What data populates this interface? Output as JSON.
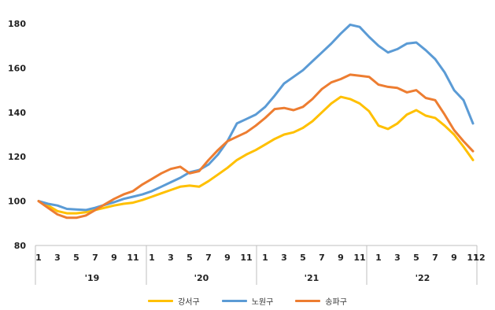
{
  "chart_data": {
    "type": "line",
    "title": "",
    "xlabel": "",
    "ylabel": "",
    "ylim": [
      80,
      180
    ],
    "yticks": [
      80,
      100,
      120,
      140,
      160,
      180
    ],
    "x_month_labels": [
      "1",
      "3",
      "5",
      "7",
      "9",
      "11",
      "1",
      "3",
      "5",
      "7",
      "9",
      "11",
      "1",
      "3",
      "5",
      "7",
      "9",
      "11",
      "1",
      "3",
      "5",
      "7",
      "9",
      "11",
      "12"
    ],
    "year_labels": [
      "'19",
      "'20",
      "'21",
      "'22"
    ],
    "grid": false,
    "legend_position": "bottom",
    "series": [
      {
        "name": "강서구",
        "color": "#FFC000",
        "values": [
          100,
          98,
          95.5,
          94.5,
          94.5,
          95,
          96,
          97,
          98,
          98.8,
          99.3,
          100.5,
          102,
          103.5,
          105,
          106.5,
          107,
          106.5,
          109,
          112,
          115,
          118.5,
          121,
          123,
          125.5,
          128,
          130,
          131,
          133,
          136,
          140,
          144,
          147,
          146,
          144,
          140.5,
          134,
          132.5,
          135,
          139,
          141,
          138.5,
          137.5,
          134,
          130,
          124.5,
          118.5
        ]
      },
      {
        "name": "노원구",
        "color": "#5B9BD5",
        "values": [
          100,
          98.8,
          98,
          96.5,
          96.2,
          96,
          97,
          98.3,
          99.5,
          101,
          102,
          103,
          104.5,
          106.5,
          108.5,
          110.5,
          113,
          114,
          116.5,
          121,
          127,
          135,
          137,
          139,
          142.5,
          147.5,
          153,
          156,
          159,
          163,
          167,
          171,
          175.5,
          179.5,
          178.5,
          174,
          170,
          167,
          168.5,
          171,
          171.5,
          168,
          164,
          158,
          150,
          145.5,
          135
        ]
      },
      {
        "name": "송파구",
        "color": "#ED7D31",
        "values": [
          100,
          97,
          94,
          92.5,
          92.5,
          93.5,
          96,
          98.5,
          101,
          103,
          104.5,
          107.5,
          110,
          112.5,
          114.5,
          115.5,
          112.5,
          113.5,
          118.5,
          123,
          127,
          129,
          131,
          134,
          137.5,
          141.5,
          142,
          141,
          142.5,
          146,
          150.5,
          153.5,
          155,
          157,
          156.5,
          156,
          152.5,
          151.5,
          151,
          149,
          150,
          146.5,
          145.5,
          139,
          132,
          127,
          122.5
        ]
      }
    ]
  }
}
